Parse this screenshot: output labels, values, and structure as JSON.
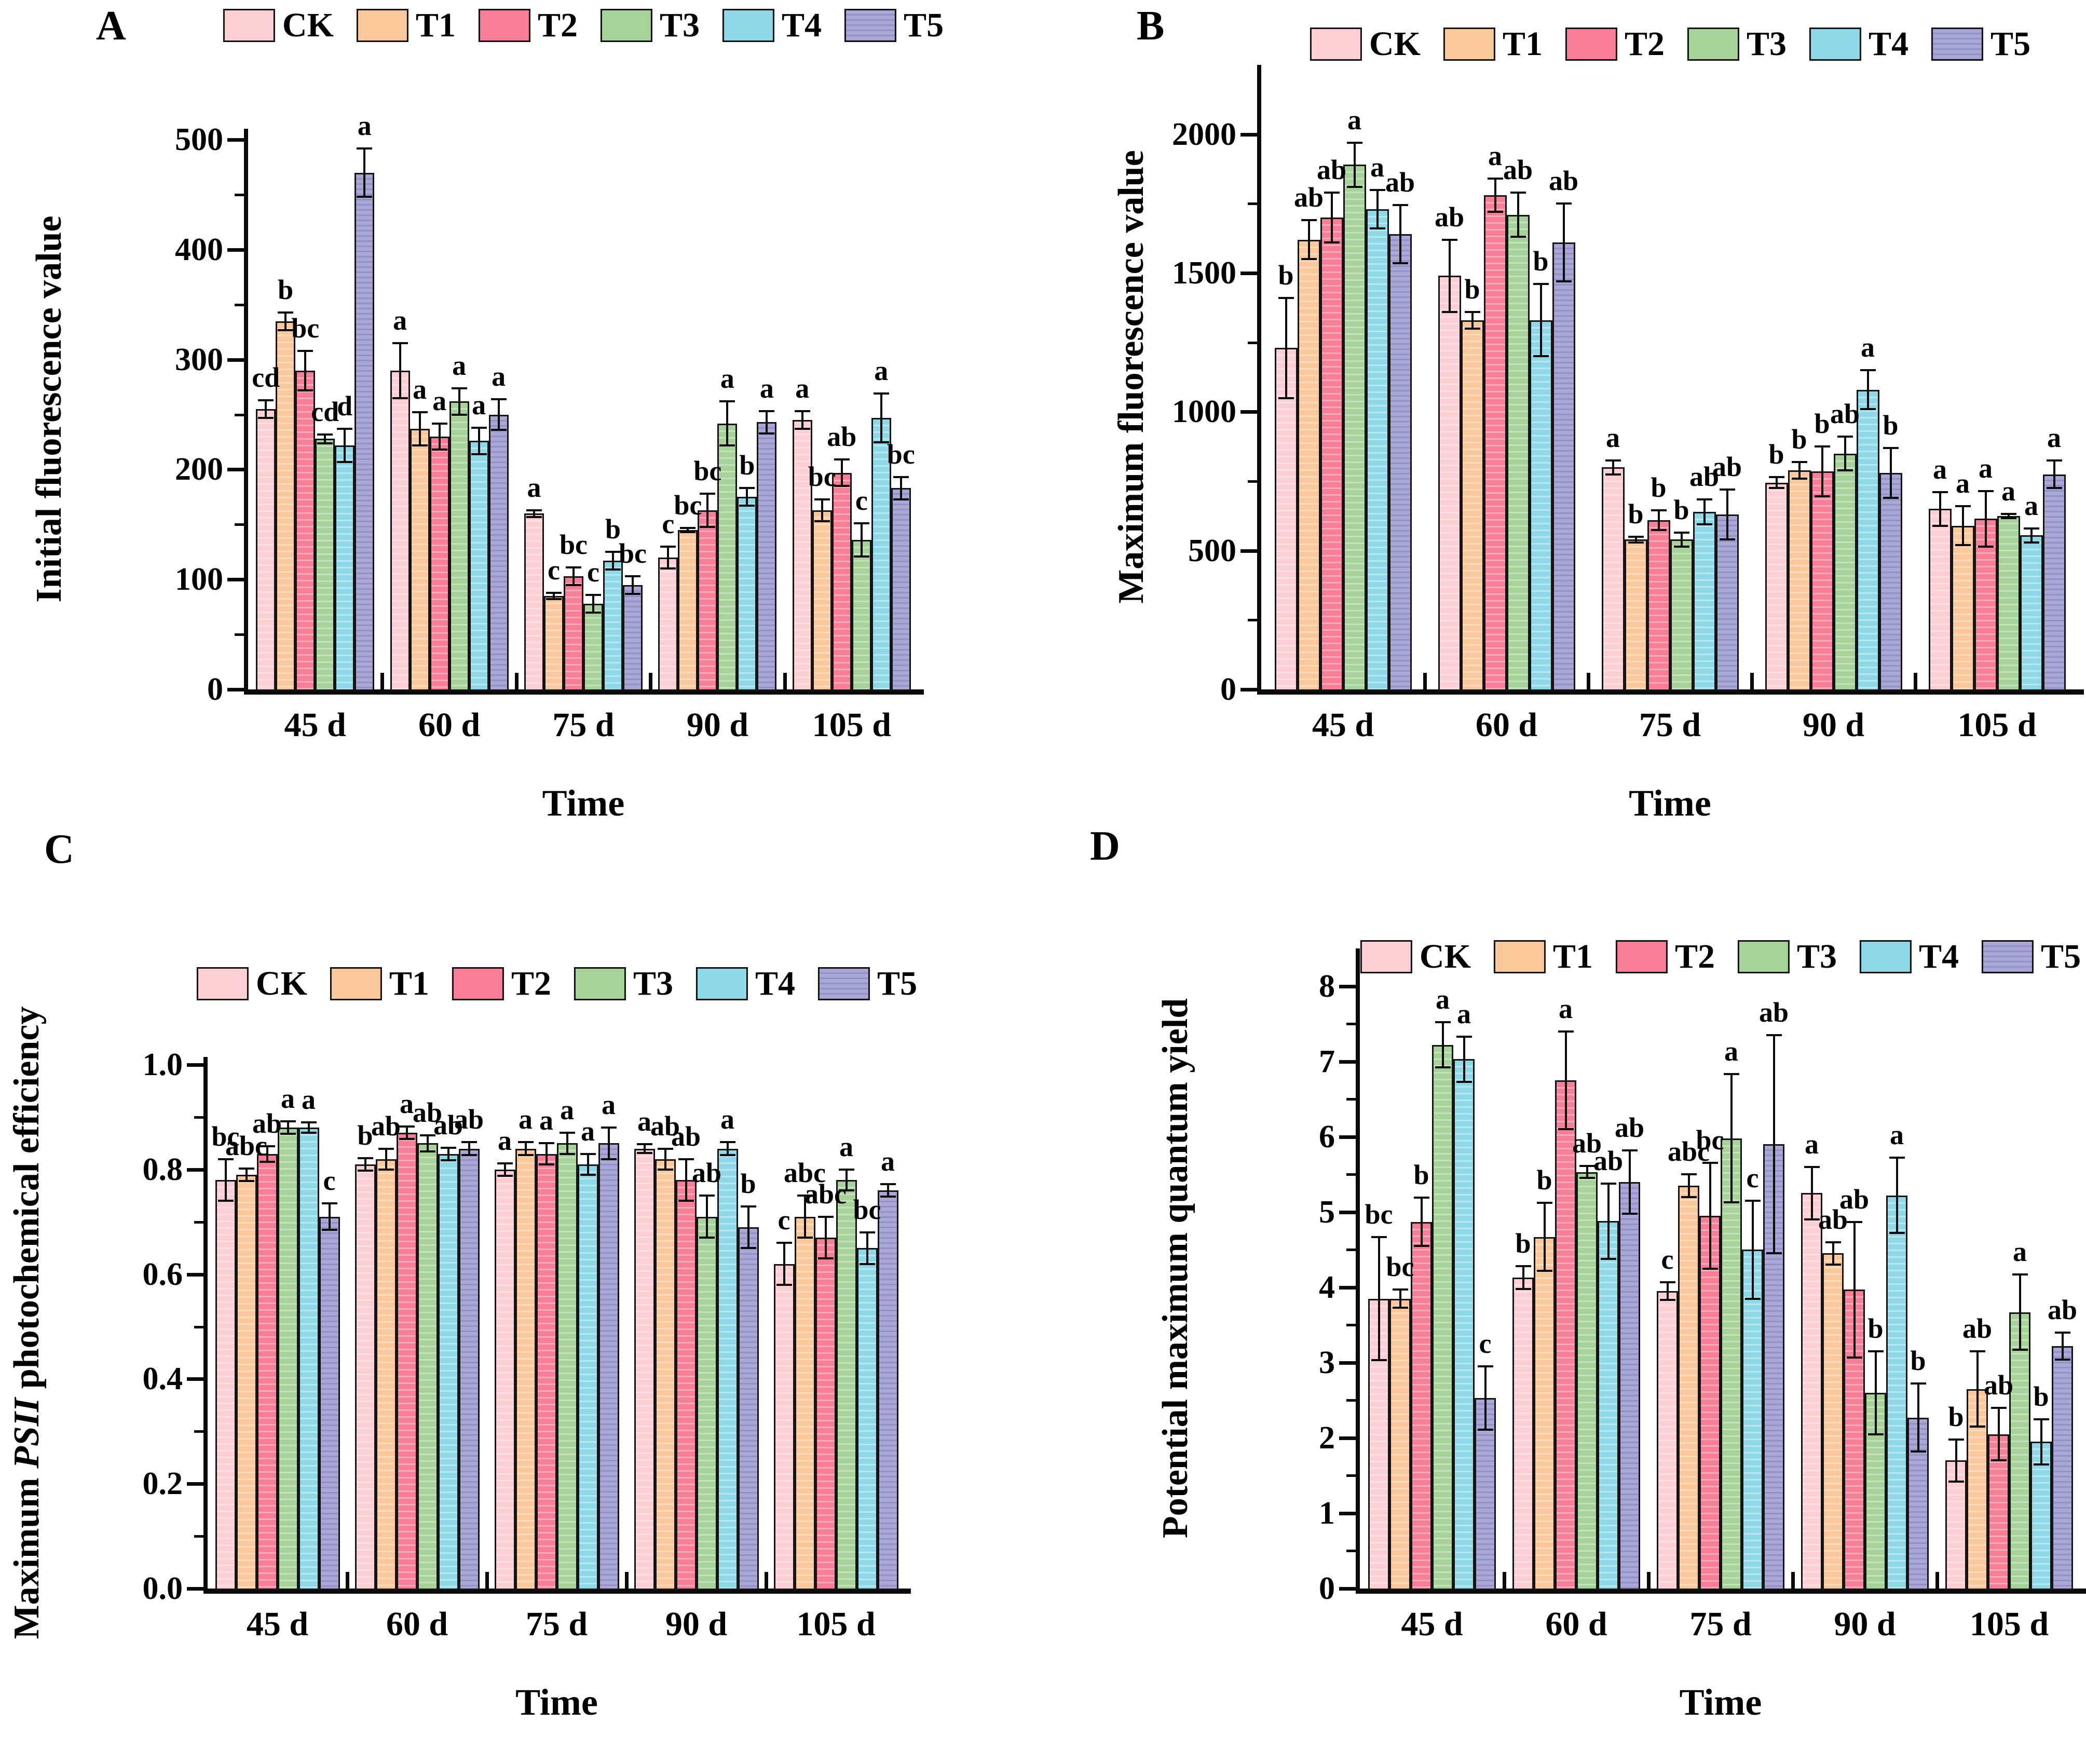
{
  "figure": {
    "panel_letters": [
      "A",
      "B",
      "C",
      "D"
    ],
    "legend": [
      {
        "label": "CK",
        "color": "#fbcfd4"
      },
      {
        "label": "T1",
        "color": "#fbc89b"
      },
      {
        "label": "T2",
        "color": "#f87e97"
      },
      {
        "label": "T3",
        "color": "#a7d29a"
      },
      {
        "label": "T4",
        "color": "#8fd8e8"
      },
      {
        "label": "T5",
        "color": "#a8a7d6"
      }
    ]
  },
  "chart_data": [
    {
      "panel": "A",
      "type": "bar",
      "title": "",
      "ylabel": "Initial fluorescence value",
      "ylabel_parts": [
        {
          "t": "Initial fluorescence value",
          "i": false
        }
      ],
      "xlabel": "Time",
      "ylim": [
        0,
        510
      ],
      "grid": false,
      "legend_position": "top",
      "categories": [
        "45 d",
        "60 d",
        "75 d",
        "90 d",
        "105 d"
      ],
      "yticks": [
        {
          "v": 0,
          "t": "0"
        },
        {
          "v": 100,
          "t": "100"
        },
        {
          "v": 200,
          "t": "200"
        },
        {
          "v": 300,
          "t": "300"
        },
        {
          "v": 400,
          "t": "400"
        },
        {
          "v": 500,
          "t": "500"
        }
      ],
      "yminor": [
        50,
        150,
        250,
        350,
        450
      ],
      "series": [
        {
          "name": "CK",
          "values": [
            255,
            290,
            160,
            120,
            245
          ],
          "errors": [
            8,
            25,
            3,
            10,
            8
          ],
          "letters": [
            "cd",
            "a",
            "a",
            "c",
            "a"
          ]
        },
        {
          "name": "T1",
          "values": [
            335,
            237,
            85,
            145,
            163
          ],
          "errors": [
            8,
            15,
            3,
            2,
            10
          ],
          "letters": [
            "b",
            "a",
            "c",
            "bc",
            "bc"
          ]
        },
        {
          "name": "T2",
          "values": [
            290,
            230,
            103,
            163,
            197
          ],
          "errors": [
            18,
            12,
            8,
            15,
            12
          ],
          "letters": [
            "bc",
            "a",
            "bc",
            "bc",
            "ab"
          ]
        },
        {
          "name": "T3",
          "values": [
            228,
            262,
            78,
            242,
            136
          ],
          "errors": [
            4,
            12,
            8,
            20,
            15
          ],
          "letters": [
            "cd",
            "a",
            "c",
            "a",
            "c"
          ]
        },
        {
          "name": "T4",
          "values": [
            222,
            226,
            117,
            175,
            247
          ],
          "errors": [
            15,
            12,
            8,
            8,
            22
          ],
          "letters": [
            "d",
            "a",
            "b",
            "b",
            "a"
          ]
        },
        {
          "name": "T5",
          "values": [
            470,
            250,
            95,
            243,
            183
          ],
          "errors": [
            22,
            14,
            8,
            10,
            10
          ],
          "letters": [
            "a",
            "a",
            "bc",
            "a",
            "bc"
          ]
        }
      ]
    },
    {
      "panel": "B",
      "type": "bar",
      "title": "",
      "ylabel": "Maximum fluorescence value",
      "ylabel_parts": [
        {
          "t": "Maximum fluorescence value",
          "i": false
        }
      ],
      "xlabel": "Time",
      "ylim": [
        0,
        2250
      ],
      "grid": false,
      "legend_position": "top",
      "categories": [
        "45 d",
        "60 d",
        "75 d",
        "90 d",
        "105 d"
      ],
      "yticks": [
        {
          "v": 0,
          "t": "0"
        },
        {
          "v": 500,
          "t": "500"
        },
        {
          "v": 1000,
          "t": "1000"
        },
        {
          "v": 1500,
          "t": "1500"
        },
        {
          "v": 2000,
          "t": "2000"
        }
      ],
      "yminor": [
        250,
        750,
        1250,
        1750
      ],
      "series": [
        {
          "name": "CK",
          "values": [
            1230,
            1490,
            800,
            745,
            650
          ],
          "errors": [
            180,
            130,
            25,
            20,
            60
          ],
          "letters": [
            "b",
            "ab",
            "a",
            "b",
            "a"
          ]
        },
        {
          "name": "T1",
          "values": [
            1620,
            1330,
            540,
            790,
            590
          ],
          "errors": [
            70,
            30,
            10,
            30,
            70
          ],
          "letters": [
            "ab",
            "b",
            "b",
            "b",
            "a"
          ]
        },
        {
          "name": "T2",
          "values": [
            1700,
            1780,
            610,
            785,
            615
          ],
          "errors": [
            90,
            60,
            35,
            90,
            100
          ],
          "letters": [
            "ab",
            "a",
            "b",
            "b",
            "a"
          ]
        },
        {
          "name": "T3",
          "values": [
            1890,
            1710,
            540,
            850,
            625
          ],
          "errors": [
            80,
            80,
            25,
            60,
            8
          ],
          "letters": [
            "a",
            "ab",
            "b",
            "ab",
            "a"
          ]
        },
        {
          "name": "T4",
          "values": [
            1730,
            1330,
            640,
            1080,
            555
          ],
          "errors": [
            70,
            130,
            45,
            70,
            25
          ],
          "letters": [
            "a",
            "b",
            "ab",
            "a",
            "a"
          ]
        },
        {
          "name": "T5",
          "values": [
            1640,
            1610,
            630,
            780,
            775
          ],
          "errors": [
            105,
            140,
            90,
            90,
            50
          ],
          "letters": [
            "ab",
            "ab",
            "ab",
            "b",
            "a"
          ]
        }
      ]
    },
    {
      "panel": "C",
      "type": "bar",
      "title": "",
      "ylabel": "Maximum PSII photochemical efficiency",
      "ylabel_parts": [
        {
          "t": "Maximum ",
          "i": false
        },
        {
          "t": "PSII",
          "i": true
        },
        {
          "t": " photochemical efficiency",
          "i": false
        }
      ],
      "xlabel": "Time",
      "ylim": [
        0,
        1.015
      ],
      "grid": false,
      "legend_position": "top",
      "categories": [
        "45 d",
        "60 d",
        "75 d",
        "90 d",
        "105 d"
      ],
      "yticks": [
        {
          "v": 0,
          "t": "0.0"
        },
        {
          "v": 0.2,
          "t": "0.2"
        },
        {
          "v": 0.4,
          "t": "0.4"
        },
        {
          "v": 0.6,
          "t": "0.6"
        },
        {
          "v": 0.8,
          "t": "0.8"
        },
        {
          "v": 1.0,
          "t": "1.0"
        }
      ],
      "yminor": [
        0.1,
        0.3,
        0.5,
        0.7,
        0.9
      ],
      "series": [
        {
          "name": "CK",
          "values": [
            0.78,
            0.81,
            0.8,
            0.84,
            0.62
          ],
          "errors": [
            0.04,
            0.012,
            0.012,
            0.008,
            0.04
          ],
          "letters": [
            "bc",
            "b",
            "a",
            "a",
            "c"
          ]
        },
        {
          "name": "T1",
          "values": [
            0.79,
            0.82,
            0.84,
            0.82,
            0.71
          ],
          "errors": [
            0.012,
            0.02,
            0.012,
            0.02,
            0.04
          ],
          "letters": [
            "abc",
            "ab",
            "a",
            "ab",
            "abc"
          ]
        },
        {
          "name": "T2",
          "values": [
            0.83,
            0.87,
            0.83,
            0.78,
            0.67
          ],
          "errors": [
            0.015,
            0.012,
            0.02,
            0.04,
            0.04
          ],
          "letters": [
            "ab",
            "a",
            "a",
            "ab",
            "abc"
          ]
        },
        {
          "name": "T3",
          "values": [
            0.88,
            0.85,
            0.85,
            0.71,
            0.78
          ],
          "errors": [
            0.012,
            0.015,
            0.02,
            0.04,
            0.02
          ],
          "letters": [
            "a",
            "ab",
            "a",
            "ab",
            "a"
          ]
        },
        {
          "name": "T4",
          "values": [
            0.88,
            0.83,
            0.81,
            0.84,
            0.65
          ],
          "errors": [
            0.01,
            0.012,
            0.02,
            0.012,
            0.03
          ],
          "letters": [
            "a",
            "ab",
            "a",
            "a",
            "bc"
          ]
        },
        {
          "name": "T5",
          "values": [
            0.71,
            0.84,
            0.85,
            0.69,
            0.76
          ],
          "errors": [
            0.025,
            0.012,
            0.03,
            0.04,
            0.012
          ],
          "letters": [
            "c",
            "ab",
            "a",
            "b",
            "a"
          ]
        }
      ]
    },
    {
      "panel": "D",
      "type": "bar",
      "title": "",
      "ylabel": "Potential maximum quantum yield",
      "ylabel_parts": [
        {
          "t": "Potential maximum quantum yield",
          "i": false
        }
      ],
      "xlabel": "Time",
      "ylim": [
        0,
        8.5
      ],
      "grid": false,
      "legend_position": "top",
      "categories": [
        "45 d",
        "60 d",
        "75 d",
        "90 d",
        "105 d"
      ],
      "yticks": [
        {
          "v": 0,
          "t": "0"
        },
        {
          "v": 1,
          "t": "1"
        },
        {
          "v": 2,
          "t": "2"
        },
        {
          "v": 3,
          "t": "3"
        },
        {
          "v": 4,
          "t": "4"
        },
        {
          "v": 5,
          "t": "5"
        },
        {
          "v": 6,
          "t": "6"
        },
        {
          "v": 7,
          "t": "7"
        },
        {
          "v": 8,
          "t": "8"
        }
      ],
      "yminor": [
        0.5,
        1.5,
        2.5,
        3.5,
        4.5,
        5.5,
        6.5,
        7.5
      ],
      "series": [
        {
          "name": "CK",
          "values": [
            3.85,
            4.13,
            3.95,
            5.25,
            1.7
          ],
          "errors": [
            0.82,
            0.15,
            0.12,
            0.35,
            0.28
          ],
          "letters": [
            "bc",
            "b",
            "c",
            "a",
            "b"
          ]
        },
        {
          "name": "T1",
          "values": [
            3.85,
            4.67,
            5.35,
            4.45,
            2.65
          ],
          "errors": [
            0.12,
            0.45,
            0.15,
            0.15,
            0.5
          ],
          "letters": [
            "bc",
            "b",
            "abc",
            "ab",
            "ab"
          ]
        },
        {
          "name": "T2",
          "values": [
            4.87,
            6.75,
            4.95,
            3.97,
            2.05
          ],
          "errors": [
            0.32,
            0.65,
            0.7,
            0.9,
            0.35
          ],
          "letters": [
            "b",
            "a",
            "bc",
            "ab",
            "ab"
          ]
        },
        {
          "name": "T3",
          "values": [
            7.22,
            5.53,
            5.98,
            2.6,
            3.67
          ],
          "errors": [
            0.3,
            0.08,
            0.85,
            0.55,
            0.5
          ],
          "letters": [
            "a",
            "ab",
            "a",
            "b",
            "a"
          ]
        },
        {
          "name": "T4",
          "values": [
            7.03,
            4.88,
            4.5,
            5.22,
            1.95
          ],
          "errors": [
            0.3,
            0.5,
            0.65,
            0.5,
            0.3
          ],
          "letters": [
            "a",
            "ab",
            "c",
            "a",
            "b"
          ]
        },
        {
          "name": "T5",
          "values": [
            2.53,
            5.4,
            5.9,
            2.27,
            3.22
          ],
          "errors": [
            0.42,
            0.42,
            1.45,
            0.45,
            0.18
          ],
          "letters": [
            "c",
            "ab",
            "ab",
            "b",
            "ab"
          ]
        }
      ]
    }
  ]
}
